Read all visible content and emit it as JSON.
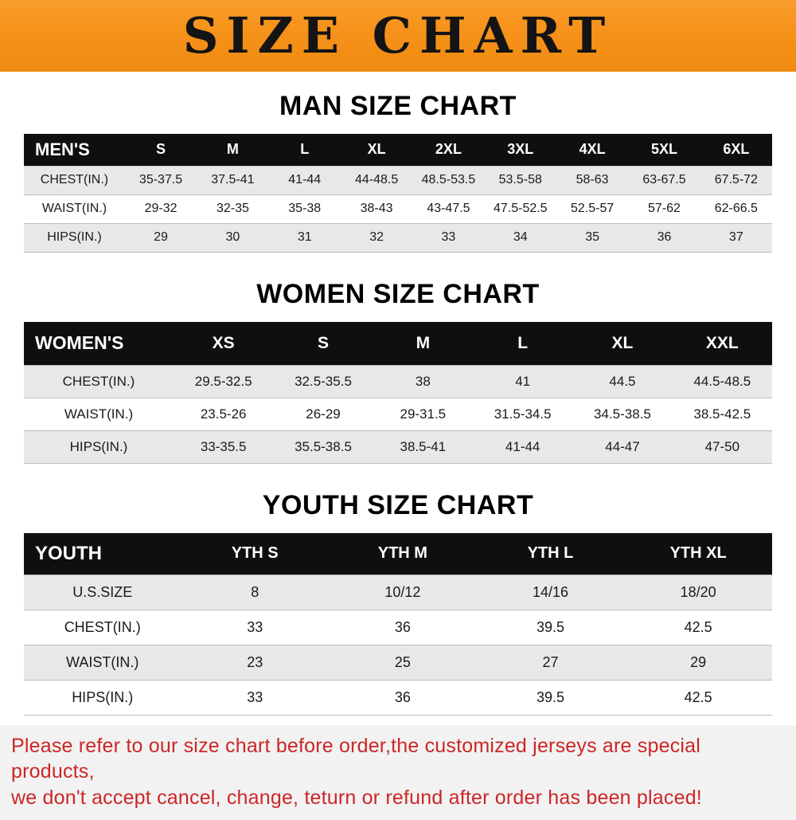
{
  "banner": {
    "title": "SIZE CHART"
  },
  "colors": {
    "banner-bg": "#f7941d",
    "banner-text": "#141414",
    "heading-text": "#000000",
    "table-header-bg": "#0f0f0f",
    "table-header-text": "#ffffff",
    "row-alt-bg": "#e8e8e8",
    "row-border": "#bdbdbd",
    "footer-text": "#cd2626",
    "footer-bg": "#f2f2f2"
  },
  "sections": [
    {
      "id": "men",
      "heading": "MAN SIZE CHART",
      "table": {
        "header_label": "MEN'S",
        "columns": [
          "S",
          "M",
          "L",
          "XL",
          "2XL",
          "3XL",
          "4XL",
          "5XL",
          "6XL"
        ],
        "rows": [
          {
            "label": "CHEST(IN.)",
            "values": [
              "35-37.5",
              "37.5-41",
              "41-44",
              "44-48.5",
              "48.5-53.5",
              "53.5-58",
              "58-63",
              "63-67.5",
              "67.5-72"
            ]
          },
          {
            "label": "WAIST(IN.)",
            "values": [
              "29-32",
              "32-35",
              "35-38",
              "38-43",
              "43-47.5",
              "47.5-52.5",
              "52.5-57",
              "57-62",
              "62-66.5"
            ]
          },
          {
            "label": "HIPS(IN.)",
            "values": [
              "29",
              "30",
              "31",
              "32",
              "33",
              "34",
              "35",
              "36",
              "37"
            ]
          }
        ]
      }
    },
    {
      "id": "women",
      "heading": "WOMEN SIZE CHART",
      "table": {
        "header_label": "WOMEN'S",
        "columns": [
          "XS",
          "S",
          "M",
          "L",
          "XL",
          "XXL"
        ],
        "rows": [
          {
            "label": "CHEST(IN.)",
            "values": [
              "29.5-32.5",
              "32.5-35.5",
              "38",
              "41",
              "44.5",
              "44.5-48.5"
            ]
          },
          {
            "label": "WAIST(IN.)",
            "values": [
              "23.5-26",
              "26-29",
              "29-31.5",
              "31.5-34.5",
              "34.5-38.5",
              "38.5-42.5"
            ]
          },
          {
            "label": "HIPS(IN.)",
            "values": [
              "33-35.5",
              "35.5-38.5",
              "38.5-41",
              "41-44",
              "44-47",
              "47-50"
            ]
          }
        ]
      }
    },
    {
      "id": "youth",
      "heading": "YOUTH SIZE CHART",
      "table": {
        "header_label": "YOUTH",
        "columns": [
          "YTH S",
          "YTH M",
          "YTH L",
          "YTH XL"
        ],
        "rows": [
          {
            "label": "U.S.SIZE",
            "values": [
              "8",
              "10/12",
              "14/16",
              "18/20"
            ]
          },
          {
            "label": "CHEST(IN.)",
            "values": [
              "33",
              "36",
              "39.5",
              "42.5"
            ]
          },
          {
            "label": "WAIST(IN.)",
            "values": [
              "23",
              "25",
              "27",
              "29"
            ]
          },
          {
            "label": "HIPS(IN.)",
            "values": [
              "33",
              "36",
              "39.5",
              "42.5"
            ]
          }
        ]
      }
    }
  ],
  "footer": {
    "line1": "Please refer to our size chart before order,the customized jerseys are special products,",
    "line2": "we don't accept cancel, change, teturn or refund after order has been placed!"
  }
}
